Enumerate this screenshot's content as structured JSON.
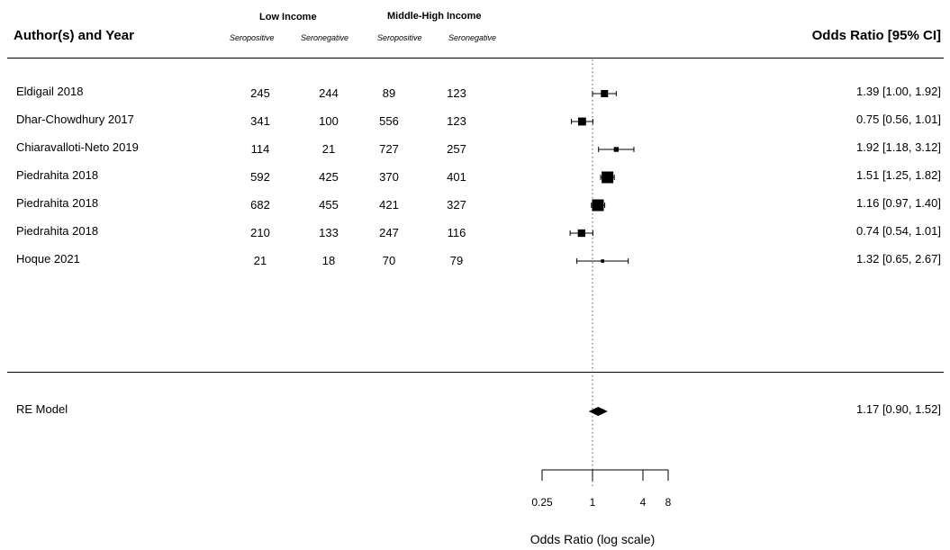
{
  "headers": {
    "study": "Author(s) and Year",
    "group_low": "Low Income",
    "group_mid": "Middle-High Income",
    "sub_labels": [
      "Seropositive",
      "Seronegative",
      "Seropositive",
      "Seronegative"
    ],
    "effect": "Odds Ratio [95% CI]"
  },
  "chart_data": {
    "type": "forest",
    "scale": "log",
    "reference_line": 1,
    "xlabel": "Odds Ratio (log scale)",
    "xticks": [
      0.25,
      1,
      4,
      8
    ],
    "xtick_labels": [
      "0.25",
      "1",
      "4",
      "8"
    ],
    "xlim": [
      0.25,
      8
    ],
    "studies": [
      {
        "label": "Eldigail 2018",
        "low_pos": 245,
        "low_neg": 244,
        "mid_pos": 89,
        "mid_neg": 123,
        "or": 1.39,
        "lo": 1.0,
        "hi": 1.92,
        "ci_text": "1.39 [1.00, 1.92]"
      },
      {
        "label": "Dhar-Chowdhury 2017",
        "low_pos": 341,
        "low_neg": 100,
        "mid_pos": 556,
        "mid_neg": 123,
        "or": 0.75,
        "lo": 0.56,
        "hi": 1.01,
        "ci_text": "0.75 [0.56, 1.01]"
      },
      {
        "label": "Chiaravalloti-Neto 2019",
        "low_pos": 114,
        "low_neg": 21,
        "mid_pos": 727,
        "mid_neg": 257,
        "or": 1.92,
        "lo": 1.18,
        "hi": 3.12,
        "ci_text": "1.92 [1.18, 3.12]"
      },
      {
        "label": "Piedrahita 2018",
        "low_pos": 592,
        "low_neg": 425,
        "mid_pos": 370,
        "mid_neg": 401,
        "or": 1.51,
        "lo": 1.25,
        "hi": 1.82,
        "ci_text": "1.51 [1.25, 1.82]"
      },
      {
        "label": "Piedrahita 2018",
        "low_pos": 682,
        "low_neg": 455,
        "mid_pos": 421,
        "mid_neg": 327,
        "or": 1.16,
        "lo": 0.97,
        "hi": 1.4,
        "ci_text": "1.16 [0.97, 1.40]"
      },
      {
        "label": "Piedrahita 2018",
        "low_pos": 210,
        "low_neg": 133,
        "mid_pos": 247,
        "mid_neg": 116,
        "or": 0.74,
        "lo": 0.54,
        "hi": 1.01,
        "ci_text": "0.74 [0.54, 1.01]"
      },
      {
        "label": "Hoque 2021",
        "low_pos": 21,
        "low_neg": 18,
        "mid_pos": 70,
        "mid_neg": 79,
        "or": 1.32,
        "lo": 0.65,
        "hi": 2.67,
        "ci_text": "1.32 [0.65, 2.67]"
      }
    ],
    "summary": {
      "label": "RE Model",
      "or": 1.17,
      "lo": 0.9,
      "hi": 1.52,
      "ci_text": "1.17 [0.90, 1.52]"
    }
  }
}
